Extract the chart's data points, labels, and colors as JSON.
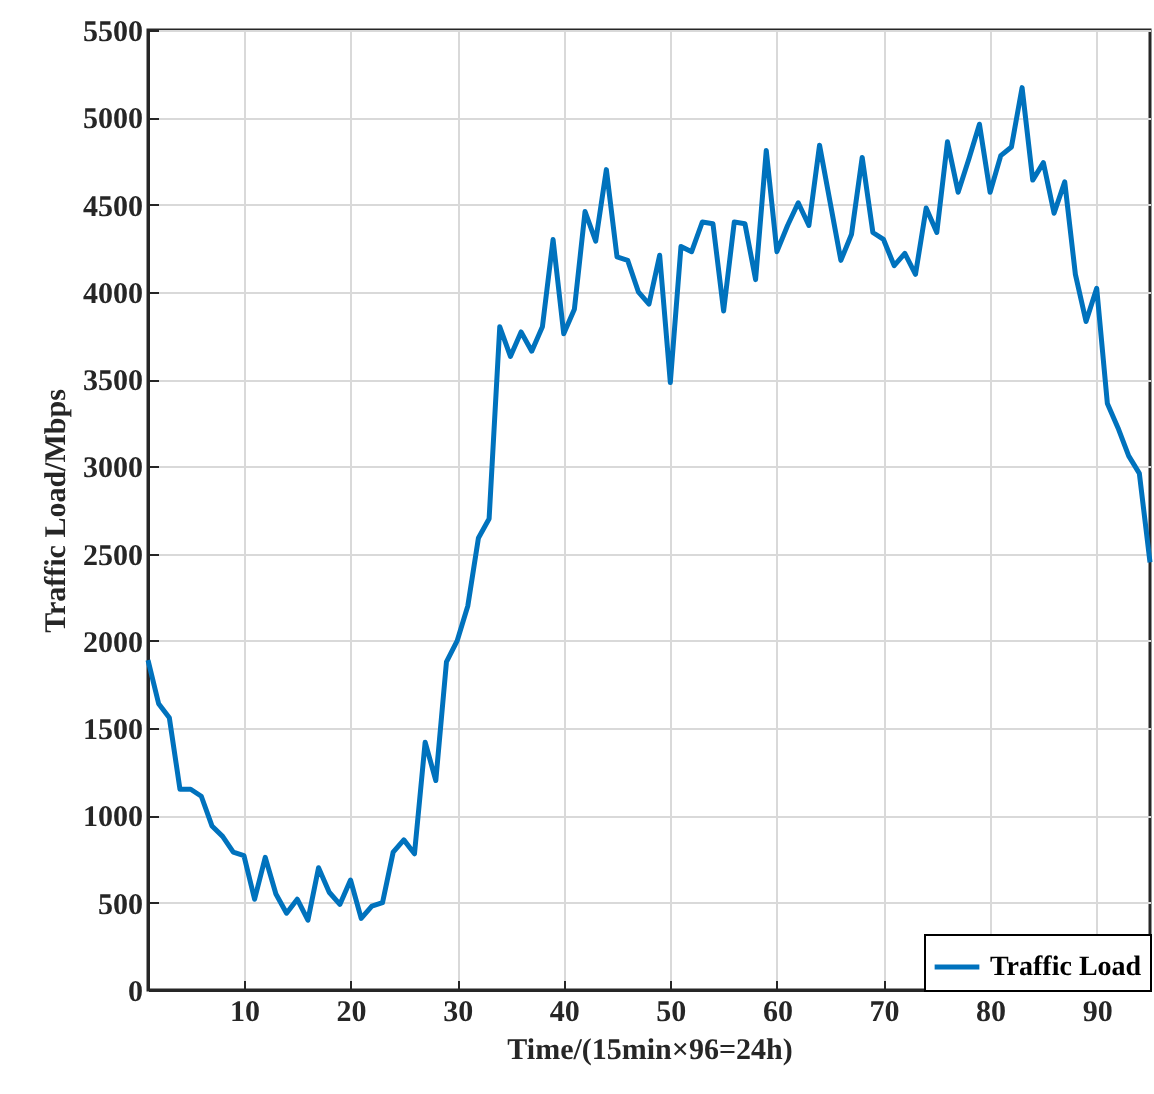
{
  "chart_data": {
    "type": "line",
    "xlabel": "Time/(15min×96=24h)",
    "ylabel": "Traffic Load/Mbps",
    "x": [
      1,
      2,
      3,
      4,
      5,
      6,
      7,
      8,
      9,
      10,
      11,
      12,
      13,
      14,
      15,
      16,
      17,
      18,
      19,
      20,
      21,
      22,
      23,
      24,
      25,
      26,
      27,
      28,
      29,
      30,
      31,
      32,
      33,
      34,
      35,
      36,
      37,
      38,
      39,
      40,
      41,
      42,
      43,
      44,
      45,
      46,
      47,
      48,
      49,
      50,
      51,
      52,
      53,
      54,
      55,
      56,
      57,
      58,
      59,
      60,
      61,
      62,
      63,
      64,
      65,
      66,
      67,
      68,
      69,
      70,
      71,
      72,
      73,
      74,
      75,
      76,
      77,
      78,
      79,
      80,
      81,
      82,
      83,
      84,
      85,
      86,
      87,
      88,
      89,
      90,
      91,
      92,
      93,
      94,
      95
    ],
    "series": [
      {
        "name": "Traffic Load",
        "color": "#0072bd",
        "values": [
          1890,
          1640,
          1560,
          1150,
          1150,
          1110,
          940,
          880,
          790,
          770,
          520,
          760,
          550,
          440,
          520,
          400,
          700,
          560,
          490,
          630,
          410,
          480,
          500,
          790,
          860,
          780,
          1420,
          1200,
          1880,
          2000,
          2200,
          2590,
          2700,
          3800,
          3630,
          3770,
          3660,
          3800,
          4300,
          3760,
          3900,
          4460,
          4290,
          4700,
          4200,
          4180,
          4000,
          3930,
          4210,
          3480,
          4260,
          4230,
          4400,
          4390,
          3890,
          4400,
          4390,
          4070,
          4810,
          4230,
          4380,
          4510,
          4380,
          4840,
          4510,
          4180,
          4330,
          4770,
          4340,
          4300,
          4150,
          4220,
          4100,
          4480,
          4340,
          4860,
          4570,
          4760,
          4960,
          4570,
          4780,
          4830,
          5170,
          4640,
          4740,
          4450,
          4630,
          4100,
          3830,
          4020,
          3360,
          3220,
          3060,
          2960,
          2450
        ]
      }
    ],
    "xlim": [
      1,
      95
    ],
    "xticks": [
      10,
      20,
      30,
      40,
      50,
      60,
      70,
      80,
      90
    ],
    "ylim": [
      0,
      5500
    ],
    "yticks": [
      0,
      500,
      1000,
      1500,
      2000,
      2500,
      3000,
      3500,
      4000,
      4500,
      5000,
      5500
    ],
    "grid": true,
    "legend": "bottom right",
    "line_style": "solid",
    "marker": "none"
  }
}
